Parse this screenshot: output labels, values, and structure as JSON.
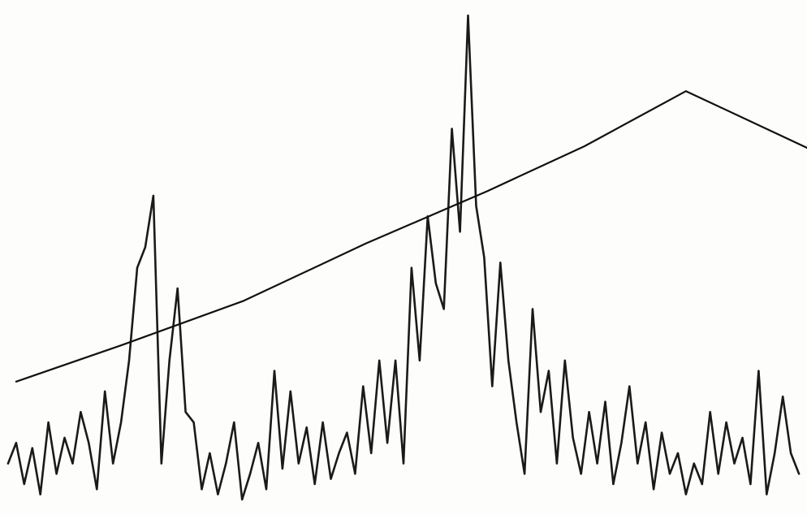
{
  "chart_data": {
    "type": "line",
    "xlim": [
      0,
      100
    ],
    "ylim": [
      0,
      100
    ],
    "series": [
      {
        "color": "#1a1a1a",
        "x": [
          1,
          2,
          3,
          4,
          5,
          6,
          7,
          8,
          9,
          10,
          11,
          12,
          13,
          14,
          15,
          16,
          17,
          18,
          19,
          20,
          21,
          22,
          23,
          24,
          25,
          26,
          27,
          28,
          29,
          30,
          31,
          32,
          33,
          34,
          35,
          36,
          37,
          38,
          39,
          40,
          41,
          42,
          43,
          44,
          45,
          46,
          47,
          48,
          49,
          50,
          51,
          52,
          53,
          54,
          55,
          56,
          57,
          58,
          59,
          60,
          61,
          62,
          63,
          64,
          65,
          66,
          67,
          68,
          69,
          70,
          71,
          72,
          73,
          74,
          75,
          76,
          77,
          78,
          79,
          80,
          81,
          82,
          83,
          84,
          85,
          86,
          87,
          88,
          89,
          90,
          91,
          92,
          93,
          94,
          95,
          96,
          97,
          98,
          99
        ],
        "values": [
          10,
          14,
          6,
          13,
          4,
          18,
          8,
          15,
          10,
          20,
          14,
          5,
          24,
          10,
          18,
          30,
          48,
          52,
          62,
          10,
          30,
          44,
          20,
          18,
          5,
          12,
          4,
          10,
          18,
          3,
          8,
          14,
          5,
          28,
          9,
          24,
          10,
          17,
          6,
          18,
          7,
          12,
          16,
          8,
          25,
          12,
          30,
          14,
          30,
          10,
          48,
          30,
          58,
          45,
          40,
          75,
          55,
          97,
          60,
          50,
          25,
          49,
          30,
          18,
          8,
          40,
          20,
          28,
          10,
          30,
          15,
          8,
          20,
          10,
          22,
          6,
          14,
          25,
          10,
          18,
          5,
          16,
          8,
          12,
          4,
          10,
          6,
          20,
          8,
          18,
          10,
          15,
          6,
          28,
          4,
          12,
          23,
          12,
          8
        ]
      },
      {
        "color": "#111111",
        "x": [
          2,
          15.1,
          30.2,
          45.3,
          60.4,
          72.4,
          85,
          100
        ],
        "values": [
          25.9,
          33,
          41.6,
          52.7,
          62.9,
          71.6,
          82.3,
          71.3
        ]
      }
    ]
  }
}
